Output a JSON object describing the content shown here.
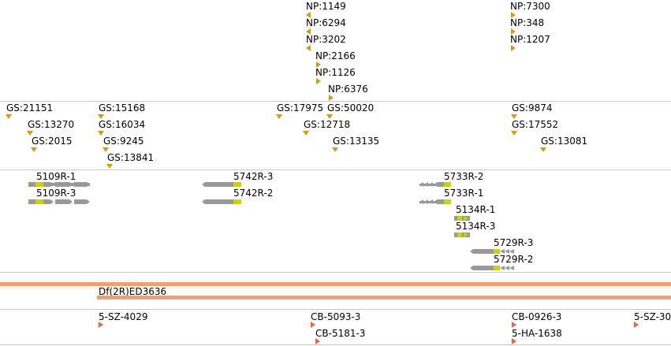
{
  "np_track": {
    "features": [
      {
        "label": "NP:1149"
      },
      {
        "label": "NP:6294"
      },
      {
        "label": "NP:3202"
      },
      {
        "label": "NP:2166"
      },
      {
        "label": "NP:1126"
      },
      {
        "label": "NP:6376"
      },
      {
        "label": "NP:7300"
      },
      {
        "label": "NP:348"
      },
      {
        "label": "NP:1207"
      }
    ]
  },
  "gs_track": {
    "features": [
      {
        "label": "GS:21151"
      },
      {
        "label": "GS:13270"
      },
      {
        "label": "GS:2015"
      },
      {
        "label": "GS:15168"
      },
      {
        "label": "GS:16034"
      },
      {
        "label": "GS:9245"
      },
      {
        "label": "GS:13841"
      },
      {
        "label": "GS:17975"
      },
      {
        "label": "GS:12718"
      },
      {
        "label": "GS:50020"
      },
      {
        "label": "GS:13135"
      },
      {
        "label": "GS:9874"
      },
      {
        "label": "GS:17552"
      },
      {
        "label": "GS:13081"
      }
    ]
  },
  "gene_track": {
    "features": [
      {
        "label": "5109R-1"
      },
      {
        "label": "5109R-3"
      },
      {
        "label": "5742R-3"
      },
      {
        "label": "5742R-2"
      },
      {
        "label": "5733R-2"
      },
      {
        "label": "5733R-1"
      },
      {
        "label": "5134R-1"
      },
      {
        "label": "5134R-3"
      },
      {
        "label": "5729R-3"
      },
      {
        "label": "5729R-2"
      }
    ]
  },
  "deficiency_track": {
    "features": [
      {
        "label": "Df(2R)ED3636"
      }
    ]
  },
  "cb_track": {
    "features": [
      {
        "label": "5-SZ-4029"
      },
      {
        "label": "CB-5093-3"
      },
      {
        "label": "CB-5181-3"
      },
      {
        "label": "CB-0926-3"
      },
      {
        "label": "5-HA-1638"
      },
      {
        "label": "5-SZ-30"
      }
    ]
  },
  "colors": {
    "marker": "#d49a10",
    "gene_body": "#999999",
    "exon_highlight": "#c8d400",
    "deficiency_bar": "#f0a070",
    "cb_marker": "#e8644a"
  }
}
